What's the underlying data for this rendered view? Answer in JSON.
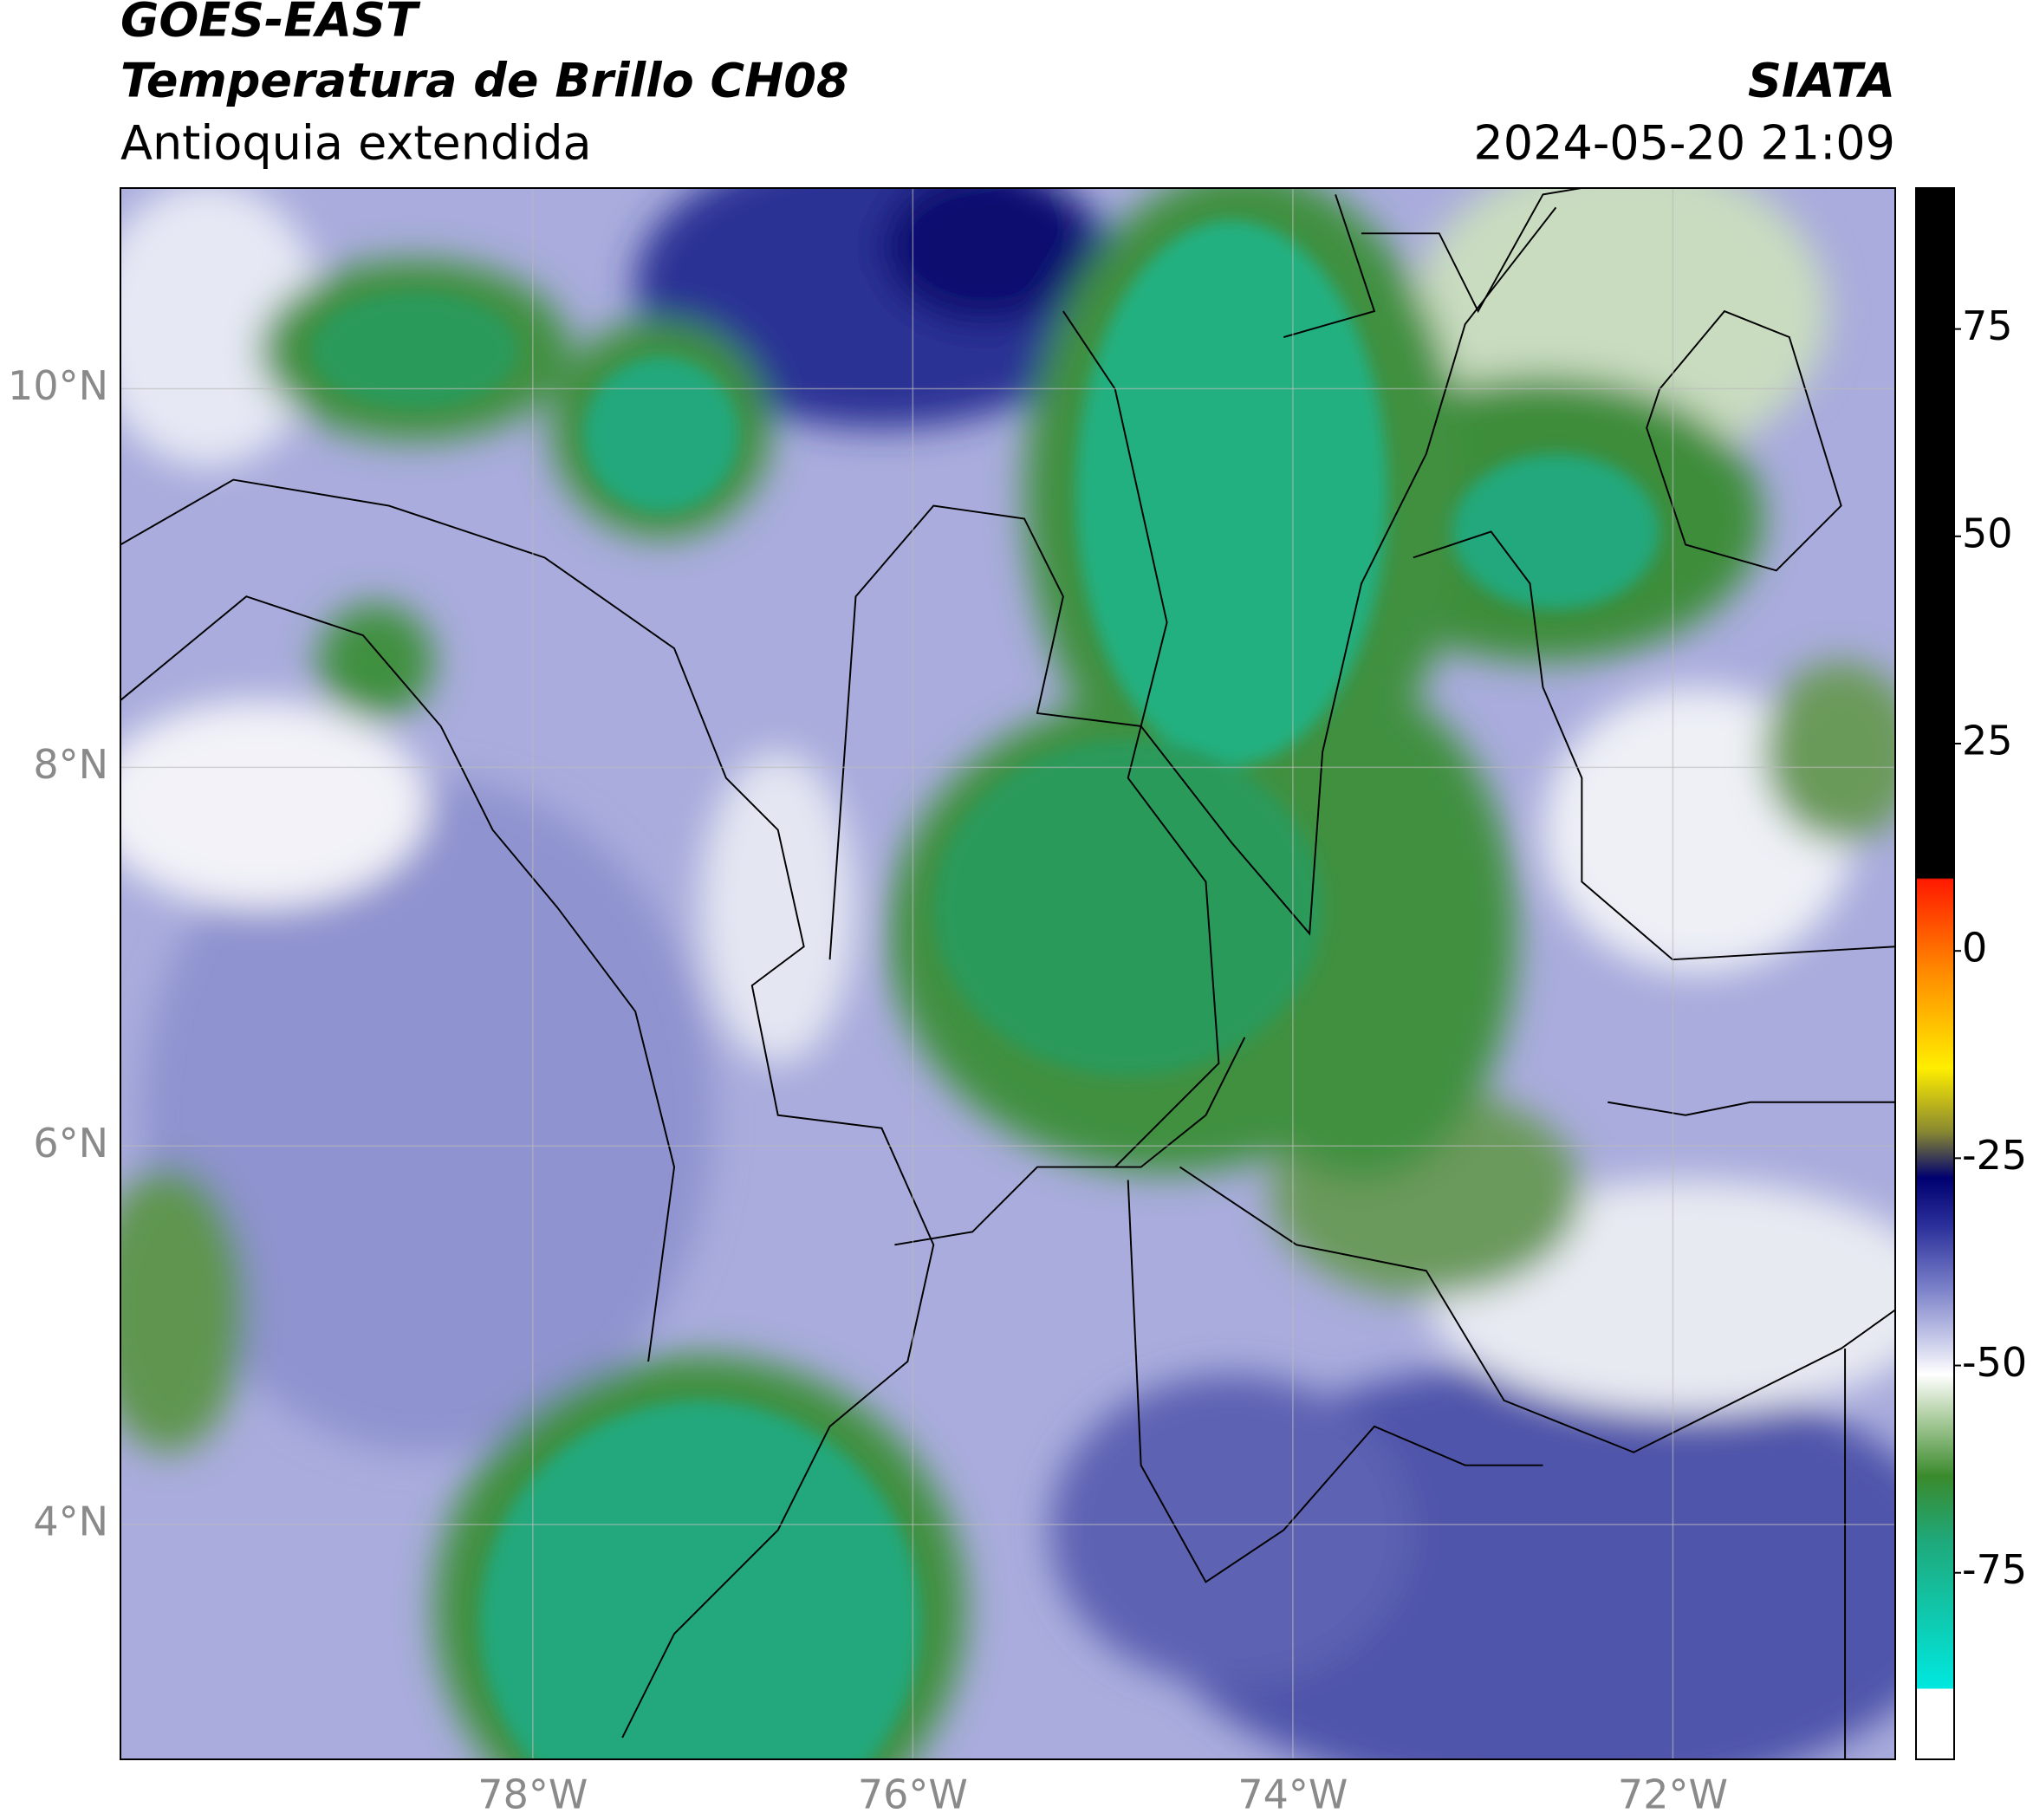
{
  "header": {
    "satellite": "GOES-EAST",
    "product": "Temperatura de Brillo CH08",
    "region": "Antioquia extendida",
    "source": "SIATA",
    "datetime": "2024-05-20 21:09"
  },
  "map": {
    "lonlim": [
      -80.17,
      -70.83
    ],
    "latlim": [
      2.76,
      11.06
    ],
    "lon_ticks": [
      {
        "value": -78,
        "label": "78°W"
      },
      {
        "value": -76,
        "label": "76°W"
      },
      {
        "value": -74,
        "label": "74°W"
      },
      {
        "value": -72,
        "label": "72°W"
      }
    ],
    "lat_ticks": [
      {
        "value": 10,
        "label": "10°N"
      },
      {
        "value": 8,
        "label": "8°N"
      },
      {
        "value": 6,
        "label": "6°N"
      },
      {
        "value": 4,
        "label": "4°N"
      }
    ],
    "grid": true
  },
  "colorbar": {
    "lim": [
      -97.5,
      92
    ],
    "ticks": [
      75,
      50,
      25,
      0,
      -25,
      -50,
      -75
    ]
  }
}
